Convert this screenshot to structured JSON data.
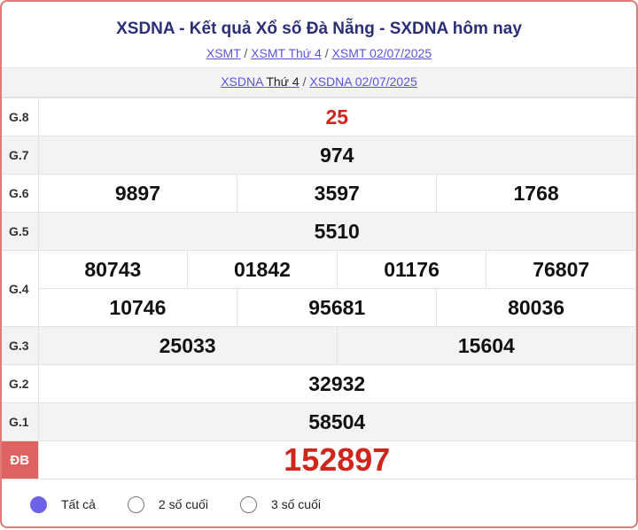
{
  "header": {
    "title": "XSDNA - Kết quả Xổ số Đà Nẵng - SXDNA hôm nay",
    "breadcrumb": [
      "XSMT",
      "XSMT Thứ 4",
      "XSMT 02/07/2025"
    ],
    "sub_links": {
      "a_link": "XSDNA",
      "a_plain": "Thứ 4",
      "b": "XSDNA 02/07/2025"
    }
  },
  "prizes": [
    {
      "label": "G.8",
      "numbers": [
        "25"
      ]
    },
    {
      "label": "G.7",
      "numbers": [
        "974"
      ]
    },
    {
      "label": "G.6",
      "numbers": [
        "9897",
        "3597",
        "1768"
      ]
    },
    {
      "label": "G.5",
      "numbers": [
        "5510"
      ]
    },
    {
      "label": "G.4",
      "numbers": [
        "80743",
        "01842",
        "01176",
        "76807",
        "10746",
        "95681",
        "80036"
      ]
    },
    {
      "label": "G.3",
      "numbers": [
        "25033",
        "15604"
      ]
    },
    {
      "label": "G.2",
      "numbers": [
        "32932"
      ]
    },
    {
      "label": "G.1",
      "numbers": [
        "58504"
      ]
    },
    {
      "label": "ĐB",
      "numbers": [
        "152897"
      ]
    }
  ],
  "filters": [
    {
      "label": "Tất cả",
      "selected": true
    },
    {
      "label": "2 số cuối",
      "selected": false
    },
    {
      "label": "3 số cuối",
      "selected": false
    }
  ],
  "colors": {
    "accent": "#6e63e8",
    "special": "#d0251c",
    "title": "#2b2f78",
    "border": "#e07b78"
  }
}
